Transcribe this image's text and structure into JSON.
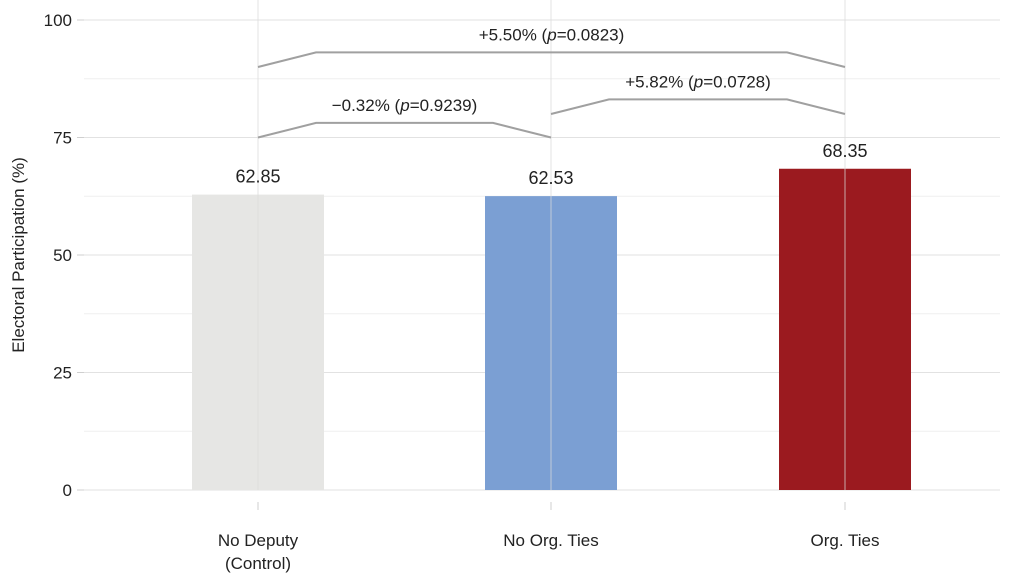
{
  "chart_data": {
    "type": "bar",
    "title": "",
    "xlabel": "",
    "ylabel": "Electoral Participation (%)",
    "ylim": [
      0,
      100
    ],
    "yticks": [
      0,
      25,
      50,
      75,
      100
    ],
    "grid": true,
    "categories": [
      [
        "No Deputy",
        "(Control)"
      ],
      [
        "No Org. Ties"
      ],
      [
        "Org. Ties"
      ]
    ],
    "values": [
      62.85,
      62.53,
      68.35
    ],
    "value_labels": [
      "62.85",
      "62.53",
      "68.35"
    ],
    "bar_colors": [
      "#e6e6e4",
      "#7b9fd3",
      "#9b1a1f"
    ],
    "annotations": [
      {
        "from": 0,
        "to": 1,
        "prefix": "−0.32% (",
        "p_symbol": "p",
        "suffix": "=0.9239)",
        "start_y": 75,
        "peak_y": 78.1
      },
      {
        "from": 1,
        "to": 2,
        "prefix": "+5.82% (",
        "p_symbol": "p",
        "suffix": "=0.0728)",
        "start_y": 80,
        "peak_y": 83.1
      },
      {
        "from": 0,
        "to": 2,
        "prefix": "+5.50% (",
        "p_symbol": "p",
        "suffix": "=0.0823)",
        "start_y": 90,
        "peak_y": 93.1
      }
    ]
  }
}
